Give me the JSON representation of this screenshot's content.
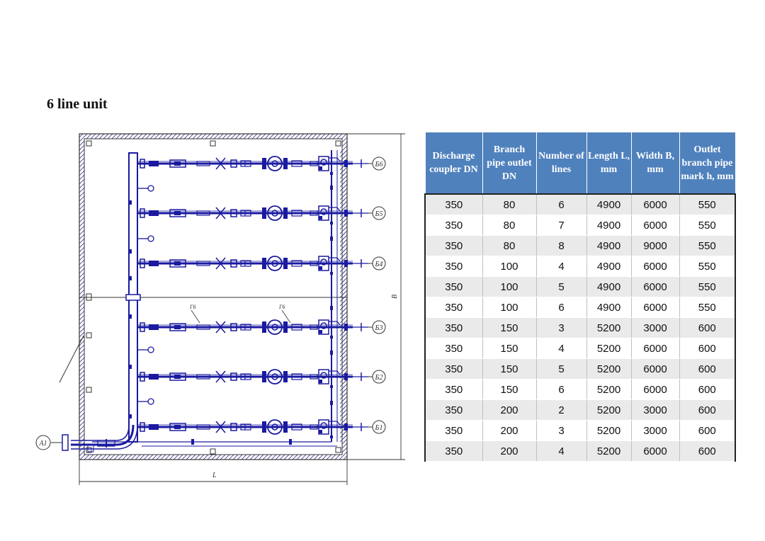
{
  "title": "6 line unit",
  "drawing": {
    "outlet_marks": [
      "Б6",
      "Б5",
      "Б4",
      "Б3",
      "Б2",
      "Б1"
    ],
    "inlet_mark": "A1",
    "dim_length": "L",
    "dim_width": "B",
    "small_marks": [
      "Г6",
      "Г6"
    ]
  },
  "table": {
    "headers": [
      "Discharge coupler DN",
      "Branch pipe outlet DN",
      "Number of lines",
      "Length L, mm",
      "Width B, mm",
      "Outlet branch pipe mark h, mm"
    ],
    "rows": [
      [
        "350",
        "80",
        "6",
        "4900",
        "6000",
        "550"
      ],
      [
        "350",
        "80",
        "7",
        "4900",
        "6000",
        "550"
      ],
      [
        "350",
        "80",
        "8",
        "4900",
        "9000",
        "550"
      ],
      [
        "350",
        "100",
        "4",
        "4900",
        "6000",
        "550"
      ],
      [
        "350",
        "100",
        "5",
        "4900",
        "6000",
        "550"
      ],
      [
        "350",
        "100",
        "6",
        "4900",
        "6000",
        "550"
      ],
      [
        "350",
        "150",
        "3",
        "5200",
        "3000",
        "600"
      ],
      [
        "350",
        "150",
        "4",
        "5200",
        "6000",
        "600"
      ],
      [
        "350",
        "150",
        "5",
        "5200",
        "6000",
        "600"
      ],
      [
        "350",
        "150",
        "6",
        "5200",
        "6000",
        "600"
      ],
      [
        "350",
        "200",
        "2",
        "5200",
        "3000",
        "600"
      ],
      [
        "350",
        "200",
        "3",
        "5200",
        "3000",
        "600"
      ],
      [
        "350",
        "200",
        "4",
        "5200",
        "6000",
        "600"
      ]
    ]
  }
}
